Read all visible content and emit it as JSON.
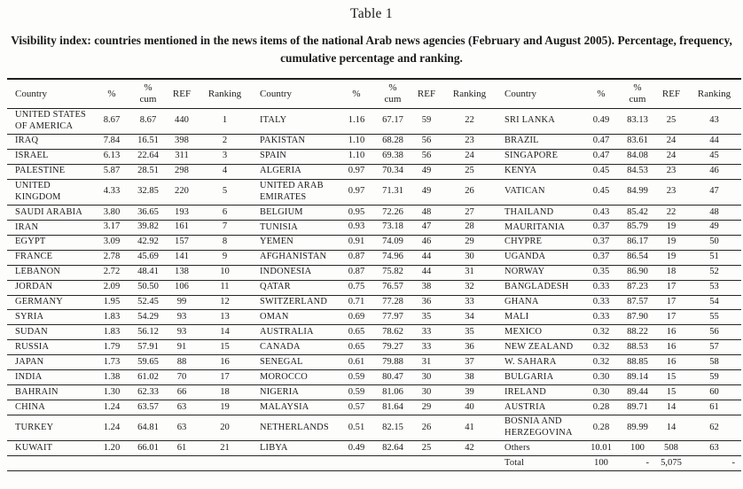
{
  "title": "Table 1",
  "caption": "Visibility index: countries mentioned in the news items of the national Arab news agencies (February and August 2005). Percentage, frequency, cumulative percentage and ranking.",
  "table": {
    "columns": [
      "Country",
      "%",
      "% cum",
      "REF",
      "Ranking"
    ],
    "blocks": [
      {
        "rows": [
          [
            "UNITED STATES OF AMERICA",
            "8.67",
            "8.67",
            "440",
            "1"
          ],
          [
            "IRAQ",
            "7.84",
            "16.51",
            "398",
            "2"
          ],
          [
            "ISRAEL",
            "6.13",
            "22.64",
            "311",
            "3"
          ],
          [
            "PALESTINE",
            "5.87",
            "28.51",
            "298",
            "4"
          ],
          [
            "UNITED KINGDOM",
            "4.33",
            "32.85",
            "220",
            "5"
          ],
          [
            "SAUDI ARABIA",
            "3.80",
            "36.65",
            "193",
            "6"
          ],
          [
            "IRAN",
            "3.17",
            "39.82",
            "161",
            "7"
          ],
          [
            "EGYPT",
            "3.09",
            "42.92",
            "157",
            "8"
          ],
          [
            "FRANCE",
            "2.78",
            "45.69",
            "141",
            "9"
          ],
          [
            "LEBANON",
            "2.72",
            "48.41",
            "138",
            "10"
          ],
          [
            "JORDAN",
            "2.09",
            "50.50",
            "106",
            "11"
          ],
          [
            "GERMANY",
            "1.95",
            "52.45",
            "99",
            "12"
          ],
          [
            "SYRIA",
            "1.83",
            "54.29",
            "93",
            "13"
          ],
          [
            "SUDAN",
            "1.83",
            "56.12",
            "93",
            "14"
          ],
          [
            "RUSSIA",
            "1.79",
            "57.91",
            "91",
            "15"
          ],
          [
            "JAPAN",
            "1.73",
            "59.65",
            "88",
            "16"
          ],
          [
            "INDIA",
            "1.38",
            "61.02",
            "70",
            "17"
          ],
          [
            "BAHRAIN",
            "1.30",
            "62.33",
            "66",
            "18"
          ],
          [
            "CHINA",
            "1.24",
            "63.57",
            "63",
            "19"
          ],
          [
            "TURKEY",
            "1.24",
            "64.81",
            "63",
            "20"
          ],
          [
            "KUWAIT",
            "1.20",
            "66.01",
            "61",
            "21"
          ],
          [
            "",
            "",
            "",
            "",
            ""
          ]
        ]
      },
      {
        "rows": [
          [
            "ITALY",
            "1.16",
            "67.17",
            "59",
            "22"
          ],
          [
            "PAKISTAN",
            "1.10",
            "68.28",
            "56",
            "23"
          ],
          [
            "SPAIN",
            "1.10",
            "69.38",
            "56",
            "24"
          ],
          [
            "ALGERIA",
            "0.97",
            "70.34",
            "49",
            "25"
          ],
          [
            "UNITED ARAB EMIRATES",
            "0.97",
            "71.31",
            "49",
            "26"
          ],
          [
            "BELGIUM",
            "0.95",
            "72.26",
            "48",
            "27"
          ],
          [
            "TUNISIA",
            "0.93",
            "73.18",
            "47",
            "28"
          ],
          [
            "YEMEN",
            "0.91",
            "74.09",
            "46",
            "29"
          ],
          [
            "AFGHANISTAN",
            "0.87",
            "74.96",
            "44",
            "30"
          ],
          [
            "INDONESIA",
            "0.87",
            "75.82",
            "44",
            "31"
          ],
          [
            "QATAR",
            "0.75",
            "76.57",
            "38",
            "32"
          ],
          [
            "SWITZERLAND",
            "0.71",
            "77.28",
            "36",
            "33"
          ],
          [
            "OMAN",
            "0.69",
            "77.97",
            "35",
            "34"
          ],
          [
            "AUSTRALIA",
            "0.65",
            "78.62",
            "33",
            "35"
          ],
          [
            "CANADA",
            "0.65",
            "79.27",
            "33",
            "36"
          ],
          [
            "SENEGAL",
            "0.61",
            "79.88",
            "31",
            "37"
          ],
          [
            "MOROCCO",
            "0.59",
            "80.47",
            "30",
            "38"
          ],
          [
            "NIGERIA",
            "0.59",
            "81.06",
            "30",
            "39"
          ],
          [
            "MALAYSIA",
            "0.57",
            "81.64",
            "29",
            "40"
          ],
          [
            "NETHERLANDS",
            "0.51",
            "82.15",
            "26",
            "41"
          ],
          [
            "LIBYA",
            "0.49",
            "82.64",
            "25",
            "42"
          ],
          [
            "",
            "",
            "",
            "",
            ""
          ]
        ]
      },
      {
        "rows": [
          [
            "SRI LANKA",
            "0.49",
            "83.13",
            "25",
            "43"
          ],
          [
            "BRAZIL",
            "0.47",
            "83.61",
            "24",
            "44"
          ],
          [
            "SINGAPORE",
            "0.47",
            "84.08",
            "24",
            "45"
          ],
          [
            "KENYA",
            "0.45",
            "84.53",
            "23",
            "46"
          ],
          [
            "VATICAN",
            "0.45",
            "84.99",
            "23",
            "47"
          ],
          [
            "THAILAND",
            "0.43",
            "85.42",
            "22",
            "48"
          ],
          [
            "MAURITANIA",
            "0.37",
            "85.79",
            "19",
            "49"
          ],
          [
            "CHYPRE",
            "0.37",
            "86.17",
            "19",
            "50"
          ],
          [
            "UGANDA",
            "0.37",
            "86.54",
            "19",
            "51"
          ],
          [
            "NORWAY",
            "0.35",
            "86.90",
            "18",
            "52"
          ],
          [
            "BANGLADESH",
            "0.33",
            "87.23",
            "17",
            "53"
          ],
          [
            "GHANA",
            "0.33",
            "87.57",
            "17",
            "54"
          ],
          [
            "MALI",
            "0.33",
            "87.90",
            "17",
            "55"
          ],
          [
            "MEXICO",
            "0.32",
            "88.22",
            "16",
            "56"
          ],
          [
            "NEW ZEALAND",
            "0.32",
            "88.53",
            "16",
            "57"
          ],
          [
            "W. SAHARA",
            "0.32",
            "88.85",
            "16",
            "58"
          ],
          [
            "BULGARIA",
            "0.30",
            "89.14",
            "15",
            "59"
          ],
          [
            "IRELAND",
            "0.30",
            "89.44",
            "15",
            "60"
          ],
          [
            "AUSTRIA",
            "0.28",
            "89.71",
            "14",
            "61"
          ],
          [
            "BOSNIA AND HERZEGOVINA",
            "0.28",
            "89.99",
            "14",
            "62"
          ],
          [
            "Others",
            "10.01",
            "100",
            "508",
            "63"
          ],
          [
            "Total",
            "100",
            "-",
            "5,075",
            "-"
          ]
        ]
      }
    ]
  }
}
